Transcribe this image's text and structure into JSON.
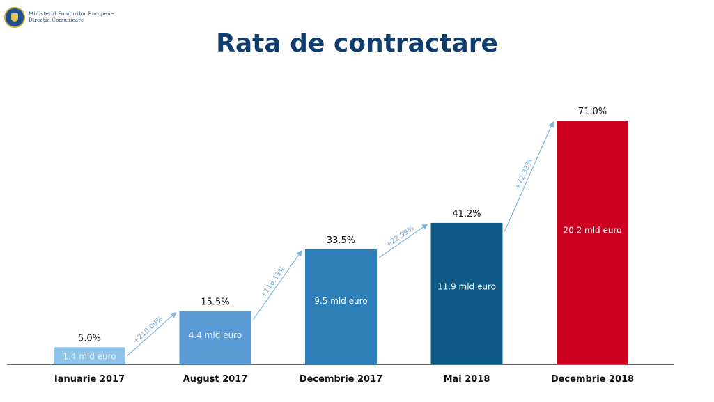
{
  "header": {
    "org_line1": "Ministerul Fondurilor Europene",
    "org_line2": "Direcția Comunicare",
    "emblem_icon": "romanian-coat-of-arms-icon"
  },
  "chart_data": {
    "type": "bar",
    "title": "Rata de contractare",
    "categories": [
      "Ianuarie 2017",
      "August 2017",
      "Decembrie 2017",
      "Mai 2018",
      "Decembrie 2018"
    ],
    "values": [
      5.0,
      15.5,
      33.5,
      41.2,
      71.0
    ],
    "value_labels": [
      "5.0%",
      "15.5%",
      "33.5%",
      "41.2%",
      "71.0%"
    ],
    "amount_labels": [
      "1.4 mld euro",
      "4.4 mld euro",
      "9.5 mld euro",
      "11.9 mld euro",
      "20.2 mld euro"
    ],
    "growth_labels": [
      "+210.00%",
      "+116.13%",
      "+22.99%",
      "+72.33%"
    ],
    "ylim": [
      0,
      71
    ],
    "grid": false,
    "colors": [
      "#8ec3ea",
      "#5b9bd5",
      "#2e7fb8",
      "#0e5a87",
      "#cc0020"
    ]
  }
}
